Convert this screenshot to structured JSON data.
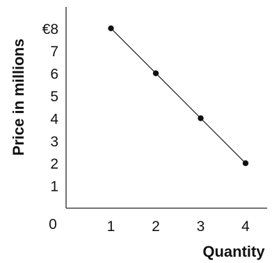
{
  "chart_data": {
    "type": "line",
    "xlabel": "Quantity",
    "ylabel": "Price in millions",
    "origin_label": "0",
    "x_ticks": [
      "1",
      "2",
      "3",
      "4"
    ],
    "y_ticks": [
      "1",
      "2",
      "3",
      "4",
      "5",
      "6",
      "7",
      "€8"
    ],
    "xlim": [
      0,
      4.5
    ],
    "ylim": [
      0,
      9
    ],
    "grid": false,
    "series": [
      {
        "x": [
          1,
          2,
          3,
          4
        ],
        "y": [
          8,
          6,
          4,
          2
        ]
      }
    ]
  }
}
